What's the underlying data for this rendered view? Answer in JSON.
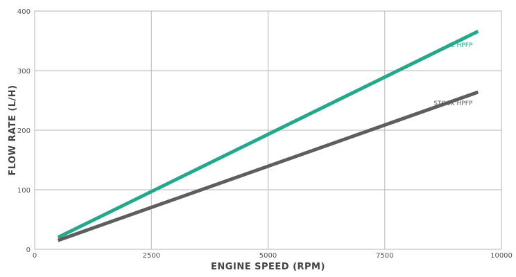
{
  "chart_data": {
    "type": "line",
    "title": "",
    "xlabel": "ENGINE SPEED (RPM)",
    "ylabel": "FLOW RATE (L/H)",
    "xlim": [
      0,
      10000
    ],
    "ylim": [
      0,
      400
    ],
    "x_ticks": [
      0,
      2500,
      5000,
      7500,
      10000
    ],
    "y_ticks": [
      0,
      100,
      200,
      300,
      400
    ],
    "x_tick_labels": [
      "0",
      "2500",
      "5000",
      "7500",
      "10000"
    ],
    "y_tick_labels": [
      "0",
      "100",
      "200",
      "300",
      "400"
    ],
    "grid": true,
    "legend": "none",
    "series": [
      {
        "name": "IE HPFP",
        "color": "#24a88a",
        "points": [
          [
            500,
            20
          ],
          [
            9500,
            366
          ]
        ]
      },
      {
        "name": "STOCK HPFP",
        "color": "#5e5e5e",
        "points": [
          [
            500,
            15
          ],
          [
            9500,
            264
          ]
        ]
      }
    ]
  }
}
